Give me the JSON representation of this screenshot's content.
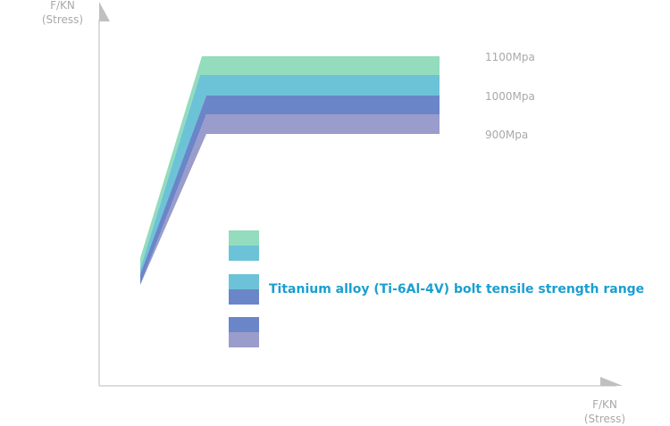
{
  "chart_data": {
    "type": "area",
    "title": "",
    "y_axis_label": [
      "F/KN",
      "(Stress)"
    ],
    "x_axis_label": [
      "F/KN",
      "(Stress)"
    ],
    "levels": [
      {
        "label": "1100Mpa",
        "value": 1100,
        "color": "#93dcbd"
      },
      {
        "label": "1000Mpa",
        "value": 1000,
        "color": "#6cc3d8"
      },
      {
        "label": "",
        "value": 950,
        "color": "#6b86c8"
      },
      {
        "label": "900Mpa",
        "value": 900,
        "color": "#9a9ccb"
      }
    ],
    "legend": {
      "caption": "Titanium alloy (Ti-6Al-4V) bolt tensile strength range",
      "caption_color": "#1a9fd0",
      "swatch_groups": [
        [
          "#93dcbd",
          "#6cc3d8"
        ],
        [
          "#6cc3d8",
          "#6b86c8"
        ],
        [
          "#6b86c8",
          "#9a9ccb"
        ]
      ]
    },
    "axis_color": "#d0d0d0",
    "arrow_color": "#c0c0c0"
  }
}
